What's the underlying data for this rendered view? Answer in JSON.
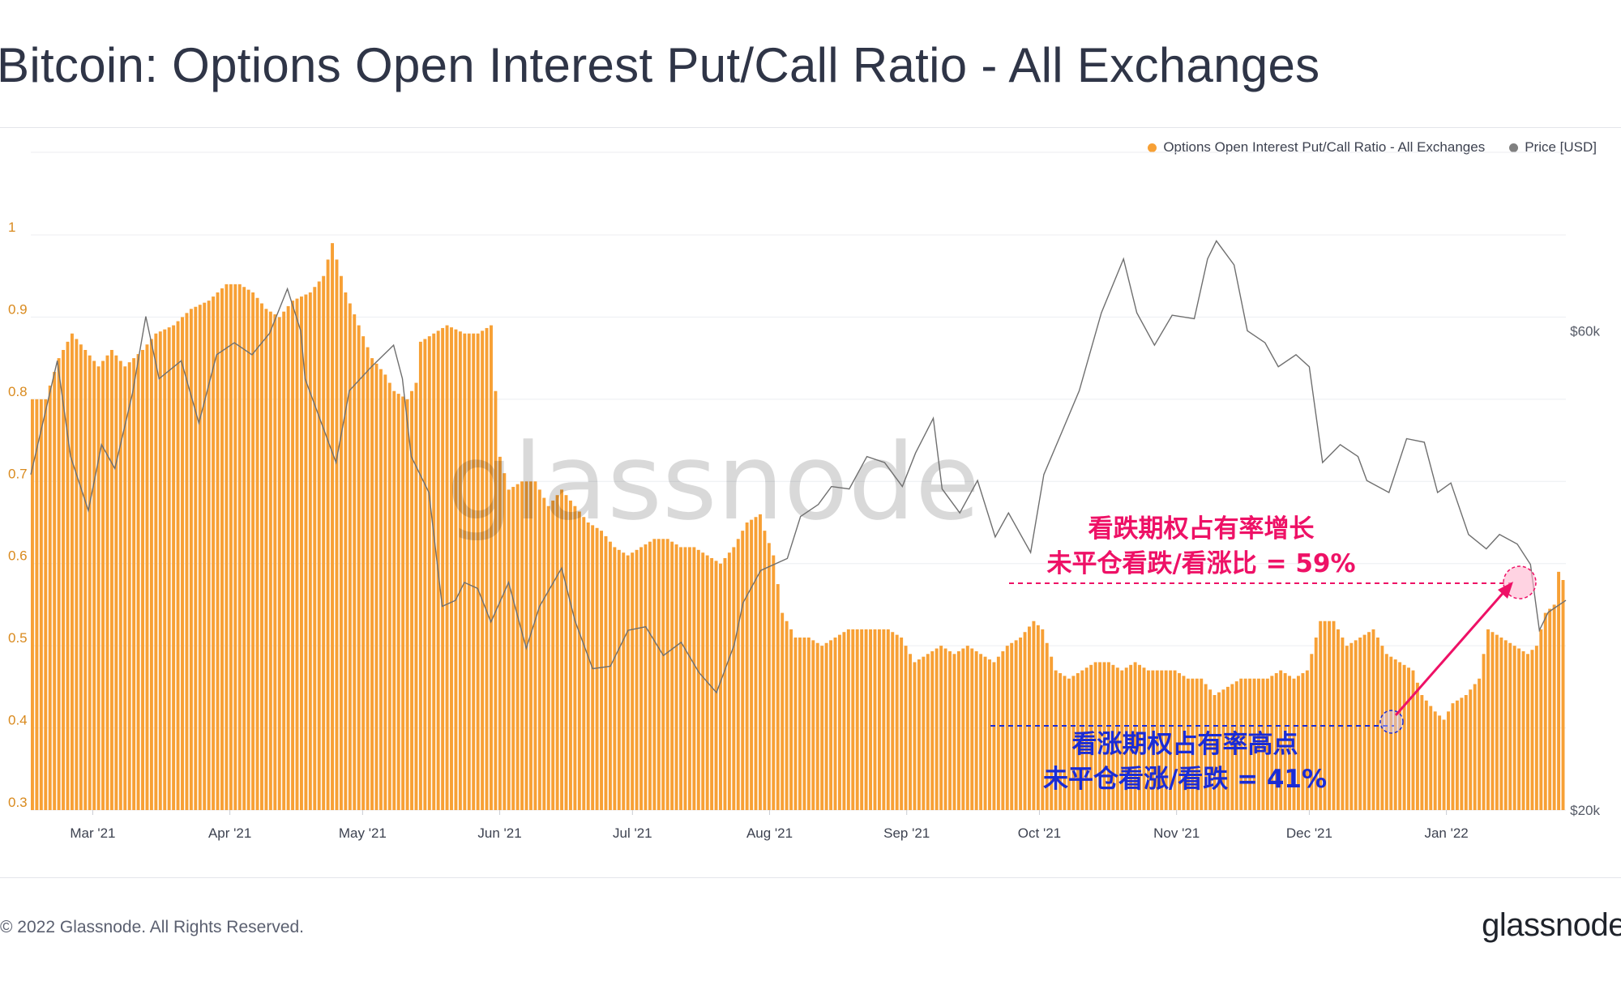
{
  "page": {
    "title": "Bitcoin: Options Open Interest Put/Call Ratio - All Exchanges",
    "copyright": "© 2022 Glassnode. All Rights Reserved.",
    "logo": "glassnode",
    "watermark": "glassnode"
  },
  "legend": [
    {
      "label": "Options Open Interest Put/Call Ratio - All Exchanges",
      "color": "#f7a035"
    },
    {
      "label": "Price [USD]",
      "color": "#808080"
    }
  ],
  "annotations": {
    "top_line1": "看跌期权占有率增长",
    "top_line2": "未平仓看跌/看涨比 = 59%",
    "bottom_line1": "看涨期权占有率高点",
    "bottom_line2": "未平仓看涨/看跌 = 41%",
    "top_color": "#ee1166",
    "bottom_color": "#1a2bd6"
  },
  "chart_data": {
    "type": "bar",
    "x_tick_labels": [
      "Mar '21",
      "Apr '21",
      "May '21",
      "Jun '21",
      "Jul '21",
      "Aug '21",
      "Sep '21",
      "Oct '21",
      "Nov '21",
      "Dec '21",
      "Jan '22"
    ],
    "x_range": [
      "2021-02-15",
      "2022-01-28"
    ],
    "y_left": {
      "ticks": [
        "0.3",
        "0.4",
        "0.5",
        "0.6",
        "0.7",
        "0.8",
        "0.9",
        "1"
      ],
      "range": [
        0.3,
        1.0
      ]
    },
    "y_right": {
      "ticks": [
        "$20k",
        "$60k"
      ],
      "range_usd": [
        20000,
        68000
      ],
      "scale": "linear"
    },
    "grid": true,
    "legend_position": "top-right",
    "series": [
      {
        "name": "Options Open Interest Put/Call Ratio - All Exchanges",
        "kind": "bar",
        "color": "#f7a035",
        "points": [
          [
            "2021-02-15",
            0.8
          ],
          [
            "2021-02-18",
            0.8
          ],
          [
            "2021-02-21",
            0.85
          ],
          [
            "2021-02-24",
            0.88
          ],
          [
            "2021-02-27",
            0.86
          ],
          [
            "2021-03-02",
            0.84
          ],
          [
            "2021-03-05",
            0.86
          ],
          [
            "2021-03-08",
            0.84
          ],
          [
            "2021-03-12",
            0.86
          ],
          [
            "2021-03-15",
            0.88
          ],
          [
            "2021-03-19",
            0.89
          ],
          [
            "2021-03-23",
            0.91
          ],
          [
            "2021-03-27",
            0.92
          ],
          [
            "2021-03-31",
            0.94
          ],
          [
            "2021-04-03",
            0.94
          ],
          [
            "2021-04-06",
            0.93
          ],
          [
            "2021-04-09",
            0.91
          ],
          [
            "2021-04-12",
            0.9
          ],
          [
            "2021-04-15",
            0.92
          ],
          [
            "2021-04-19",
            0.93
          ],
          [
            "2021-04-22",
            0.95
          ],
          [
            "2021-04-24",
            0.99
          ],
          [
            "2021-04-27",
            0.93
          ],
          [
            "2021-04-30",
            0.89
          ],
          [
            "2021-05-03",
            0.85
          ],
          [
            "2021-05-06",
            0.83
          ],
          [
            "2021-05-08",
            0.81
          ],
          [
            "2021-05-11",
            0.8
          ],
          [
            "2021-05-13",
            0.82
          ],
          [
            "2021-05-14",
            0.87
          ],
          [
            "2021-05-17",
            0.88
          ],
          [
            "2021-05-20",
            0.89
          ],
          [
            "2021-05-24",
            0.88
          ],
          [
            "2021-05-27",
            0.88
          ],
          [
            "2021-05-30",
            0.89
          ],
          [
            "2021-06-01",
            0.73
          ],
          [
            "2021-06-03",
            0.69
          ],
          [
            "2021-06-06",
            0.7
          ],
          [
            "2021-06-09",
            0.7
          ],
          [
            "2021-06-12",
            0.67
          ],
          [
            "2021-06-15",
            0.69
          ],
          [
            "2021-06-18",
            0.67
          ],
          [
            "2021-06-21",
            0.65
          ],
          [
            "2021-06-24",
            0.64
          ],
          [
            "2021-06-27",
            0.62
          ],
          [
            "2021-06-30",
            0.61
          ],
          [
            "2021-07-03",
            0.62
          ],
          [
            "2021-07-06",
            0.63
          ],
          [
            "2021-07-09",
            0.63
          ],
          [
            "2021-07-12",
            0.62
          ],
          [
            "2021-07-15",
            0.62
          ],
          [
            "2021-07-18",
            0.61
          ],
          [
            "2021-07-21",
            0.6
          ],
          [
            "2021-07-24",
            0.62
          ],
          [
            "2021-07-27",
            0.65
          ],
          [
            "2021-07-30",
            0.66
          ],
          [
            "2021-07-31",
            0.64
          ],
          [
            "2021-08-02",
            0.61
          ],
          [
            "2021-08-04",
            0.54
          ],
          [
            "2021-08-07",
            0.51
          ],
          [
            "2021-08-10",
            0.51
          ],
          [
            "2021-08-13",
            0.5
          ],
          [
            "2021-08-16",
            0.51
          ],
          [
            "2021-08-19",
            0.52
          ],
          [
            "2021-08-22",
            0.52
          ],
          [
            "2021-08-25",
            0.52
          ],
          [
            "2021-08-28",
            0.52
          ],
          [
            "2021-08-31",
            0.51
          ],
          [
            "2021-09-03",
            0.48
          ],
          [
            "2021-09-06",
            0.49
          ],
          [
            "2021-09-09",
            0.5
          ],
          [
            "2021-09-12",
            0.49
          ],
          [
            "2021-09-15",
            0.5
          ],
          [
            "2021-09-18",
            0.49
          ],
          [
            "2021-09-21",
            0.48
          ],
          [
            "2021-09-24",
            0.5
          ],
          [
            "2021-09-27",
            0.51
          ],
          [
            "2021-09-30",
            0.53
          ],
          [
            "2021-10-02",
            0.52
          ],
          [
            "2021-10-05",
            0.47
          ],
          [
            "2021-10-08",
            0.46
          ],
          [
            "2021-10-11",
            0.47
          ],
          [
            "2021-10-14",
            0.48
          ],
          [
            "2021-10-17",
            0.48
          ],
          [
            "2021-10-20",
            0.47
          ],
          [
            "2021-10-23",
            0.48
          ],
          [
            "2021-10-26",
            0.47
          ],
          [
            "2021-10-29",
            0.47
          ],
          [
            "2021-11-01",
            0.47
          ],
          [
            "2021-11-04",
            0.46
          ],
          [
            "2021-11-07",
            0.46
          ],
          [
            "2021-11-10",
            0.44
          ],
          [
            "2021-11-13",
            0.45
          ],
          [
            "2021-11-16",
            0.46
          ],
          [
            "2021-11-19",
            0.46
          ],
          [
            "2021-11-22",
            0.46
          ],
          [
            "2021-11-25",
            0.47
          ],
          [
            "2021-11-28",
            0.46
          ],
          [
            "2021-12-01",
            0.47
          ],
          [
            "2021-12-04",
            0.53
          ],
          [
            "2021-12-07",
            0.53
          ],
          [
            "2021-12-10",
            0.5
          ],
          [
            "2021-12-13",
            0.51
          ],
          [
            "2021-12-16",
            0.52
          ],
          [
            "2021-12-19",
            0.49
          ],
          [
            "2021-12-22",
            0.48
          ],
          [
            "2021-12-25",
            0.47
          ],
          [
            "2021-12-27",
            0.44
          ],
          [
            "2021-12-30",
            0.42
          ],
          [
            "2022-01-01",
            0.41
          ],
          [
            "2022-01-03",
            0.43
          ],
          [
            "2022-01-06",
            0.44
          ],
          [
            "2022-01-09",
            0.46
          ],
          [
            "2022-01-11",
            0.52
          ],
          [
            "2022-01-14",
            0.51
          ],
          [
            "2022-01-17",
            0.5
          ],
          [
            "2022-01-20",
            0.49
          ],
          [
            "2022-01-22",
            0.5
          ],
          [
            "2022-01-24",
            0.54
          ],
          [
            "2022-01-26",
            0.55
          ],
          [
            "2022-01-27",
            0.59
          ],
          [
            "2022-01-28",
            0.58
          ]
        ]
      },
      {
        "name": "Price [USD]",
        "kind": "line",
        "color": "#808080",
        "points": [
          [
            "2021-02-15",
            48000
          ],
          [
            "2021-02-21",
            57500
          ],
          [
            "2021-02-24",
            49500
          ],
          [
            "2021-02-28",
            45000
          ],
          [
            "2021-03-03",
            50500
          ],
          [
            "2021-03-06",
            48500
          ],
          [
            "2021-03-10",
            54800
          ],
          [
            "2021-03-13",
            61200
          ],
          [
            "2021-03-16",
            56000
          ],
          [
            "2021-03-21",
            57500
          ],
          [
            "2021-03-25",
            52300
          ],
          [
            "2021-03-29",
            58000
          ],
          [
            "2021-04-02",
            59000
          ],
          [
            "2021-04-06",
            58000
          ],
          [
            "2021-04-10",
            59800
          ],
          [
            "2021-04-14",
            63500
          ],
          [
            "2021-04-17",
            60000
          ],
          [
            "2021-04-18",
            56000
          ],
          [
            "2021-04-23",
            51000
          ],
          [
            "2021-04-25",
            49000
          ],
          [
            "2021-04-28",
            55000
          ],
          [
            "2021-05-03",
            57000
          ],
          [
            "2021-05-08",
            58800
          ],
          [
            "2021-05-10",
            56000
          ],
          [
            "2021-05-12",
            49500
          ],
          [
            "2021-05-16",
            46500
          ],
          [
            "2021-05-19",
            37000
          ],
          [
            "2021-05-22",
            37500
          ],
          [
            "2021-05-24",
            39000
          ],
          [
            "2021-05-27",
            38500
          ],
          [
            "2021-05-30",
            35700
          ],
          [
            "2021-06-03",
            39000
          ],
          [
            "2021-06-07",
            33500
          ],
          [
            "2021-06-10",
            37000
          ],
          [
            "2021-06-15",
            40200
          ],
          [
            "2021-06-18",
            35800
          ],
          [
            "2021-06-22",
            31800
          ],
          [
            "2021-06-26",
            32000
          ],
          [
            "2021-06-30",
            35000
          ],
          [
            "2021-07-04",
            35300
          ],
          [
            "2021-07-08",
            32900
          ],
          [
            "2021-07-12",
            34000
          ],
          [
            "2021-07-16",
            31500
          ],
          [
            "2021-07-20",
            29800
          ],
          [
            "2021-07-24",
            33800
          ],
          [
            "2021-07-26",
            37300
          ],
          [
            "2021-07-30",
            40000
          ],
          [
            "2021-08-05",
            41000
          ],
          [
            "2021-08-08",
            44500
          ],
          [
            "2021-08-12",
            45500
          ],
          [
            "2021-08-15",
            47000
          ],
          [
            "2021-08-19",
            46800
          ],
          [
            "2021-08-23",
            49500
          ],
          [
            "2021-08-27",
            49000
          ],
          [
            "2021-08-31",
            47000
          ],
          [
            "2021-09-03",
            49800
          ],
          [
            "2021-09-07",
            52700
          ],
          [
            "2021-09-09",
            46800
          ],
          [
            "2021-09-13",
            44800
          ],
          [
            "2021-09-17",
            47500
          ],
          [
            "2021-09-21",
            42800
          ],
          [
            "2021-09-24",
            44800
          ],
          [
            "2021-09-29",
            41500
          ],
          [
            "2021-10-02",
            48000
          ],
          [
            "2021-10-06",
            51500
          ],
          [
            "2021-10-10",
            55000
          ],
          [
            "2021-10-15",
            61500
          ],
          [
            "2021-10-20",
            66000
          ],
          [
            "2021-10-23",
            61500
          ],
          [
            "2021-10-27",
            58800
          ],
          [
            "2021-10-31",
            61300
          ],
          [
            "2021-11-05",
            61000
          ],
          [
            "2021-11-08",
            66000
          ],
          [
            "2021-11-10",
            67500
          ],
          [
            "2021-11-14",
            65500
          ],
          [
            "2021-11-17",
            60000
          ],
          [
            "2021-11-21",
            59000
          ],
          [
            "2021-11-24",
            57000
          ],
          [
            "2021-11-28",
            58000
          ],
          [
            "2021-12-01",
            57000
          ],
          [
            "2021-12-04",
            49000
          ],
          [
            "2021-12-08",
            50500
          ],
          [
            "2021-12-12",
            49500
          ],
          [
            "2021-12-14",
            47500
          ],
          [
            "2021-12-19",
            46500
          ],
          [
            "2021-12-23",
            51000
          ],
          [
            "2021-12-27",
            50700
          ],
          [
            "2021-12-30",
            46500
          ],
          [
            "2022-01-02",
            47300
          ],
          [
            "2022-01-06",
            43000
          ],
          [
            "2022-01-10",
            41800
          ],
          [
            "2022-01-13",
            43000
          ],
          [
            "2022-01-17",
            42200
          ],
          [
            "2022-01-20",
            40500
          ],
          [
            "2022-01-22",
            35000
          ],
          [
            "2022-01-24",
            36500
          ],
          [
            "2022-01-28",
            37500
          ]
        ]
      }
    ]
  }
}
